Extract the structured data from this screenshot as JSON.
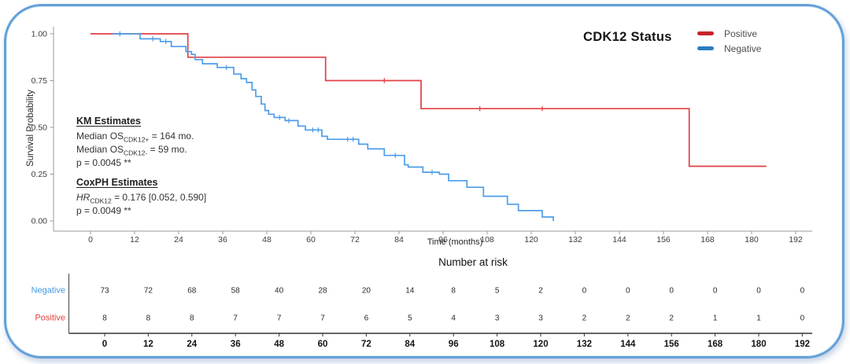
{
  "title": "CDK12 Status",
  "frame": {
    "border_color": "#63a0d8",
    "background": "#ffffff"
  },
  "legend": {
    "position": "top-right",
    "items": [
      {
        "label": "Positive",
        "color": "#c8232b"
      },
      {
        "label": "Negative",
        "color": "#2d7dc3"
      }
    ]
  },
  "annotations": {
    "km": {
      "heading": "KM Estimates",
      "lines": [
        {
          "pre": "Median OS",
          "sub": "CDK12+",
          "post": " = 164 mo."
        },
        {
          "pre": "Median OS",
          "sub": "CDK12-",
          "post": " = 59 mo."
        },
        {
          "pre": "p = 0.0045 **",
          "sub": "",
          "post": ""
        }
      ]
    },
    "coxph": {
      "heading": "CoxPH Estimates",
      "lines": [
        {
          "pre": "HR",
          "sub": "CDK12",
          "post": " = 0.176 [0.052, 0.590]"
        },
        {
          "pre": "p = 0.0049 **",
          "sub": "",
          "post": ""
        }
      ]
    }
  },
  "chart_data": {
    "type": "line",
    "subtype": "kaplan-meier-step",
    "title": "CDK12 Status",
    "xlabel": "Time (months)",
    "ylabel": "Survival Probability",
    "xlim": [
      -6,
      196
    ],
    "ylim": [
      0,
      1
    ],
    "grid": false,
    "legend_position": "top-right",
    "xticks": [
      0,
      12,
      24,
      36,
      48,
      60,
      72,
      84,
      96,
      108,
      120,
      132,
      144,
      156,
      168,
      180,
      192
    ],
    "yticks": [
      0,
      0.25,
      0.5,
      0.75,
      1
    ],
    "ytick_labels": [
      "0.00",
      "0.25",
      "0.50",
      "0.75",
      "1.00"
    ],
    "series": [
      {
        "name": "Positive",
        "color": "#e04046",
        "points": [
          [
            0,
            1.0
          ],
          [
            26.5,
            0.875
          ],
          [
            64,
            0.75
          ],
          [
            90,
            0.6
          ],
          [
            163,
            0.292
          ],
          [
            184,
            0.292
          ]
        ],
        "censor_marks": [
          [
            80,
            0.75
          ],
          [
            106,
            0.6
          ],
          [
            123,
            0.6
          ]
        ]
      },
      {
        "name": "Negative",
        "color": "#4d9de9",
        "points": [
          [
            6,
            1.0
          ],
          [
            13.5,
            0.973
          ],
          [
            19,
            0.959
          ],
          [
            22,
            0.932
          ],
          [
            26,
            0.905
          ],
          [
            27.5,
            0.89
          ],
          [
            28.5,
            0.862
          ],
          [
            30.5,
            0.84
          ],
          [
            34.5,
            0.82
          ],
          [
            39,
            0.785
          ],
          [
            41,
            0.76
          ],
          [
            42.5,
            0.74
          ],
          [
            44,
            0.7
          ],
          [
            45,
            0.665
          ],
          [
            46.5,
            0.625
          ],
          [
            47.5,
            0.59
          ],
          [
            48.5,
            0.57
          ],
          [
            50,
            0.553
          ],
          [
            53,
            0.536
          ],
          [
            56.5,
            0.507
          ],
          [
            58.5,
            0.486
          ],
          [
            63,
            0.452
          ],
          [
            64.5,
            0.436
          ],
          [
            73,
            0.41
          ],
          [
            75.5,
            0.385
          ],
          [
            80,
            0.35
          ],
          [
            85.5,
            0.3
          ],
          [
            86.5,
            0.288
          ],
          [
            90.5,
            0.26
          ],
          [
            95,
            0.25
          ],
          [
            97.5,
            0.215
          ],
          [
            102.5,
            0.18
          ],
          [
            107,
            0.132
          ],
          [
            113.5,
            0.089
          ],
          [
            116.5,
            0.055
          ],
          [
            123,
            0.021
          ],
          [
            126,
            0.0
          ]
        ],
        "censor_marks": [
          [
            8,
            1.0
          ],
          [
            17,
            0.973
          ],
          [
            20.5,
            0.959
          ],
          [
            37,
            0.82
          ],
          [
            51.5,
            0.553
          ],
          [
            54,
            0.536
          ],
          [
            60.5,
            0.486
          ],
          [
            62,
            0.486
          ],
          [
            70,
            0.436
          ],
          [
            71.5,
            0.436
          ],
          [
            83,
            0.35
          ],
          [
            93,
            0.26
          ]
        ]
      }
    ],
    "number_at_risk": {
      "heading": "Number at risk",
      "times": [
        0,
        12,
        24,
        36,
        48,
        60,
        72,
        84,
        96,
        108,
        120,
        132,
        144,
        156,
        168,
        180,
        192
      ],
      "rows": [
        {
          "label": "Negative",
          "color": "#4599e2",
          "counts": [
            73,
            72,
            68,
            58,
            40,
            28,
            20,
            14,
            8,
            5,
            2,
            0,
            0,
            0,
            0,
            0,
            0
          ]
        },
        {
          "label": "Positive",
          "color": "#e2403f",
          "counts": [
            8,
            8,
            8,
            7,
            7,
            7,
            6,
            5,
            4,
            3,
            3,
            2,
            2,
            2,
            1,
            1,
            0
          ]
        }
      ]
    }
  }
}
